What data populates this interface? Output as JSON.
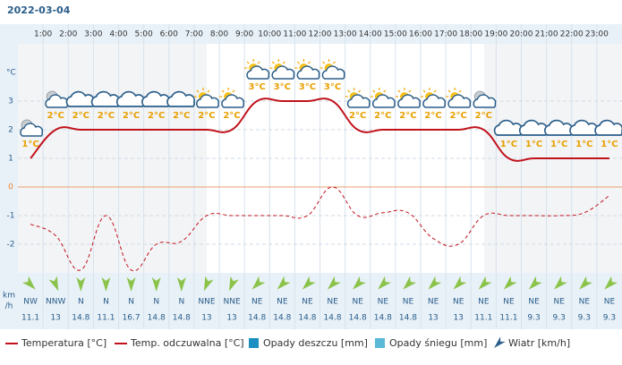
{
  "chart_data": {
    "type": "line",
    "title": "2022-03-04",
    "xticks": [
      "1:00",
      "2:00",
      "3:00",
      "4:00",
      "5:00",
      "6:00",
      "7:00",
      "8:00",
      "9:00",
      "10:00",
      "11:00",
      "12:00",
      "13:00",
      "14:00",
      "15:00",
      "16:00",
      "17:00",
      "18:00",
      "19:00",
      "20:00",
      "21:00",
      "22:00",
      "23:00"
    ],
    "y_label": "°C",
    "ylim": [
      -3,
      5
    ],
    "yticks": [
      -2,
      -1,
      0,
      1,
      2,
      3
    ],
    "series": [
      {
        "name": "Temperatura [°C]",
        "color": "#c0121b",
        "values": [
          1,
          2,
          2,
          2,
          2,
          2,
          2,
          2,
          2,
          3,
          3,
          3,
          3,
          2,
          2,
          2,
          2,
          2,
          2,
          1,
          1,
          1,
          1,
          1
        ],
        "value_labels": [
          "1°C",
          "2°C",
          "2°C",
          "2°C",
          "2°C",
          "2°C",
          "2°C",
          "2°C",
          "2°C",
          "3°C",
          "3°C",
          "3°C",
          "3°C",
          "2°C",
          "2°C",
          "2°C",
          "2°C",
          "2°C",
          "2°C",
          "1°C",
          "1°C",
          "1°C",
          "1°C",
          "1°C"
        ]
      },
      {
        "name": "Temp. odczuwalna [°C]",
        "color": "#c0121b",
        "dashed": true,
        "values": [
          -1.3,
          -1.7,
          -2.9,
          -1,
          -2.9,
          -2,
          -1.9,
          -1,
          -1,
          -1,
          -1,
          -1,
          0,
          -1,
          -0.9,
          -0.9,
          -1.8,
          -2,
          -1,
          -1,
          -1,
          -1,
          -0.9,
          -0.3
        ]
      }
    ],
    "legend_extra": [
      {
        "name": "Opady deszczu [mm]",
        "color": "#1a8fc0"
      },
      {
        "name": "Opady śniegu [mm]",
        "color": "#5bb8d6"
      },
      {
        "name": "Wiatr [km/h]",
        "color": "#2a5d8a"
      }
    ],
    "wind": {
      "unit_label": [
        "km",
        "/h"
      ],
      "directions": [
        "NW",
        "NNW",
        "N",
        "N",
        "N",
        "N",
        "N",
        "NNE",
        "NNE",
        "NE",
        "NE",
        "NE",
        "NE",
        "NE",
        "NE",
        "NE",
        "NE",
        "NE",
        "NE",
        "NE",
        "NE",
        "NE",
        "NE",
        "NE"
      ],
      "speeds": [
        11.1,
        13,
        14.8,
        11.1,
        16.7,
        14.8,
        14.8,
        13,
        13,
        14.8,
        14.8,
        14.8,
        14.8,
        14.8,
        14.8,
        14.8,
        13,
        13,
        11.1,
        11.1,
        9.3,
        9.3,
        9.3,
        9.3
      ],
      "color": "#8bc34a"
    }
  }
}
